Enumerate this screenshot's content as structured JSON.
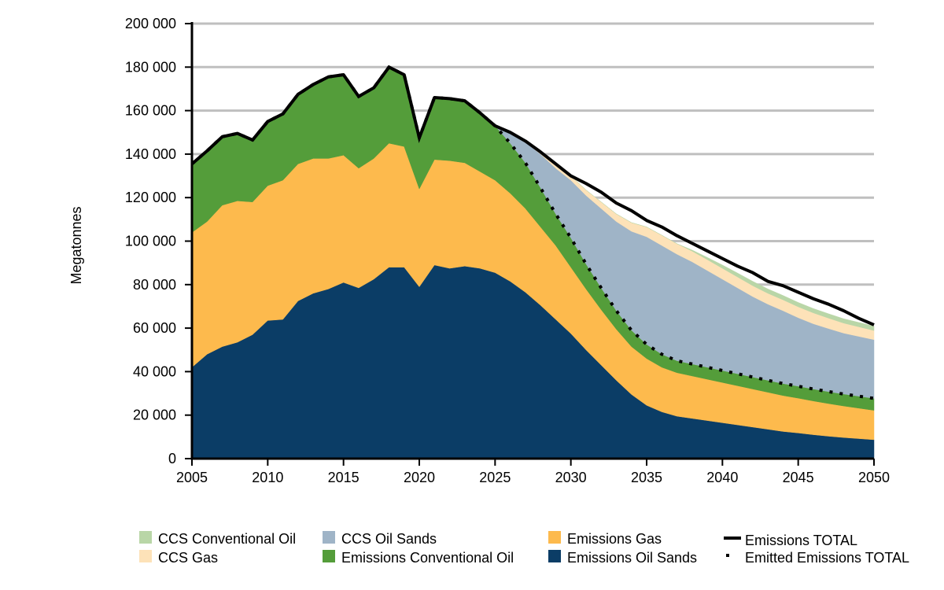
{
  "chart_data": {
    "type": "area",
    "title": "",
    "xlabel": "",
    "ylabel": "Megatonnes",
    "xlim": [
      2005,
      2050
    ],
    "ylim": [
      0,
      200000
    ],
    "x_ticks": [
      2005,
      2010,
      2015,
      2020,
      2025,
      2030,
      2035,
      2040,
      2045,
      2050
    ],
    "x_tick_labels": [
      "2005",
      "2010",
      "2015",
      "2020",
      "2025",
      "2030",
      "2035",
      "2040",
      "2045",
      "2050"
    ],
    "y_ticks": [
      0,
      20000,
      40000,
      60000,
      80000,
      100000,
      120000,
      140000,
      160000,
      180000,
      200000
    ],
    "y_tick_labels": [
      "0",
      "20 000",
      "40 000",
      "60 000",
      "80 000",
      "100 000",
      "120 000",
      "140 000",
      "160 000",
      "180 000",
      "200 000"
    ],
    "grid": "horizontal",
    "legend_position": "bottom",
    "x": [
      2005,
      2006,
      2007,
      2008,
      2009,
      2010,
      2011,
      2012,
      2013,
      2014,
      2015,
      2016,
      2017,
      2018,
      2019,
      2020,
      2021,
      2022,
      2023,
      2024,
      2025,
      2026,
      2027,
      2028,
      2029,
      2030,
      2031,
      2032,
      2033,
      2034,
      2035,
      2036,
      2037,
      2038,
      2039,
      2040,
      2041,
      2042,
      2043,
      2044,
      2045,
      2046,
      2047,
      2048,
      2049,
      2050
    ],
    "series": [
      {
        "name": "Emissions Oil Sands",
        "color": "#0b3d66",
        "values": [
          42000,
          48000,
          51500,
          53500,
          57000,
          63500,
          64000,
          72500,
          76000,
          78000,
          81000,
          78500,
          82500,
          88000,
          88000,
          79000,
          89000,
          87500,
          88500,
          87500,
          85500,
          81500,
          76500,
          70500,
          64000,
          57500,
          50000,
          43000,
          36000,
          29500,
          24500,
          21500,
          19500,
          18500,
          17500,
          16500,
          15500,
          14500,
          13500,
          12500,
          11800,
          11000,
          10300,
          9700,
          9200,
          8700
        ]
      },
      {
        "name": "Emissions Gas",
        "color": "#fdba4d",
        "values": [
          62000,
          61000,
          65000,
          65000,
          61000,
          62000,
          64000,
          63000,
          62000,
          60000,
          58500,
          55000,
          55500,
          57000,
          55500,
          45000,
          48500,
          49500,
          47500,
          44500,
          42500,
          40500,
          38500,
          36000,
          34000,
          30500,
          28000,
          25500,
          23500,
          22000,
          21500,
          20500,
          20000,
          19500,
          19000,
          18500,
          18000,
          17500,
          17000,
          16500,
          16000,
          15500,
          15000,
          14500,
          14000,
          13500
        ]
      },
      {
        "name": "Emissions Conventional Oil",
        "color": "#549d3a",
        "values": [
          31500,
          32500,
          31500,
          31000,
          28500,
          29500,
          30500,
          32000,
          34000,
          37500,
          37000,
          33000,
          32500,
          35000,
          33000,
          23500,
          28500,
          28500,
          28500,
          27000,
          25000,
          23000,
          21000,
          18000,
          14500,
          13500,
          11500,
          10000,
          8500,
          7500,
          6500,
          6000,
          5500,
          5500,
          5500,
          5500,
          5500,
          5500,
          5500,
          5500,
          5500,
          5500,
          5500,
          5500,
          5500,
          5500
        ]
      },
      {
        "name": "CCS Oil Sands",
        "color": "#9fb4c7",
        "values": [
          0,
          0,
          0,
          0,
          0,
          0,
          0,
          0,
          0,
          0,
          0,
          0,
          0,
          0,
          0,
          0,
          0,
          0,
          0,
          0,
          0,
          5000,
          9500,
          15500,
          21000,
          26500,
          31500,
          36500,
          41000,
          45500,
          49500,
          50000,
          49000,
          47000,
          44500,
          42000,
          39500,
          37000,
          35000,
          33500,
          31500,
          30000,
          29000,
          28000,
          27500,
          27000
        ]
      },
      {
        "name": "CCS Gas",
        "color": "#fde2b8",
        "values": [
          0,
          0,
          0,
          0,
          0,
          0,
          0,
          0,
          0,
          0,
          0,
          0,
          0,
          0,
          0,
          0,
          0,
          0,
          0,
          0,
          0,
          0,
          500,
          1000,
          1500,
          2000,
          2500,
          3000,
          3500,
          4000,
          4500,
          4700,
          4800,
          4900,
          5000,
          5000,
          5000,
          5000,
          5000,
          5000,
          5000,
          5000,
          4800,
          4600,
          4400,
          4200
        ]
      },
      {
        "name": "CCS Conventional Oil",
        "color": "#b9d6a7",
        "values": [
          0,
          0,
          0,
          0,
          0,
          0,
          0,
          0,
          0,
          0,
          0,
          0,
          0,
          0,
          0,
          0,
          0,
          0,
          0,
          0,
          0,
          0,
          0,
          0,
          0,
          0,
          0,
          0,
          0,
          0,
          0,
          0,
          0,
          500,
          1000,
          1500,
          1800,
          2000,
          2000,
          2000,
          2000,
          2000,
          2000,
          2000,
          2000,
          2000
        ]
      }
    ],
    "lines": [
      {
        "name": "Emissions TOTAL",
        "style": "solid",
        "color": "#000000",
        "values": [
          135500,
          141500,
          148000,
          149500,
          146500,
          155000,
          158500,
          167500,
          172000,
          175500,
          176500,
          166500,
          170500,
          180000,
          176500,
          147500,
          166000,
          165500,
          164500,
          159000,
          153000,
          150000,
          146000,
          141000,
          135500,
          130000,
          126500,
          122500,
          117500,
          114000,
          109500,
          106500,
          102500,
          99000,
          95500,
          92000,
          88500,
          85500,
          81500,
          79500,
          76500,
          73500,
          71000,
          68000,
          64500,
          61500
        ]
      },
      {
        "name": "Emitted Emissions TOTAL",
        "style": "dotted",
        "color": "#000000",
        "values": [
          135500,
          141500,
          148000,
          149500,
          146500,
          155000,
          158500,
          167500,
          172000,
          175500,
          176500,
          166500,
          170500,
          180000,
          176500,
          147500,
          166000,
          165500,
          164500,
          159000,
          153000,
          145000,
          136000,
          124500,
          112500,
          101500,
          89500,
          78500,
          68000,
          59000,
          52500,
          48000,
          45000,
          43500,
          42000,
          40500,
          39000,
          37500,
          36000,
          34500,
          33300,
          32000,
          30800,
          29700,
          28700,
          27700
        ]
      }
    ]
  },
  "legend": {
    "items": [
      {
        "label": "CCS Conventional Oil",
        "color": "#b9d6a7",
        "kind": "box"
      },
      {
        "label": "CCS Gas",
        "color": "#fde2b8",
        "kind": "box"
      },
      {
        "label": "CCS Oil Sands",
        "color": "#9fb4c7",
        "kind": "box"
      },
      {
        "label": "Emissions Conventional Oil",
        "color": "#549d3a",
        "kind": "box"
      },
      {
        "label": "Emissions Gas",
        "color": "#fdba4d",
        "kind": "box"
      },
      {
        "label": "Emissions Oil Sands",
        "color": "#0b3d66",
        "kind": "box"
      },
      {
        "label": "Emissions TOTAL",
        "color": "#000000",
        "kind": "solid-line"
      },
      {
        "label": "Emitted Emissions TOTAL",
        "color": "#000000",
        "kind": "dotted-line"
      }
    ]
  }
}
